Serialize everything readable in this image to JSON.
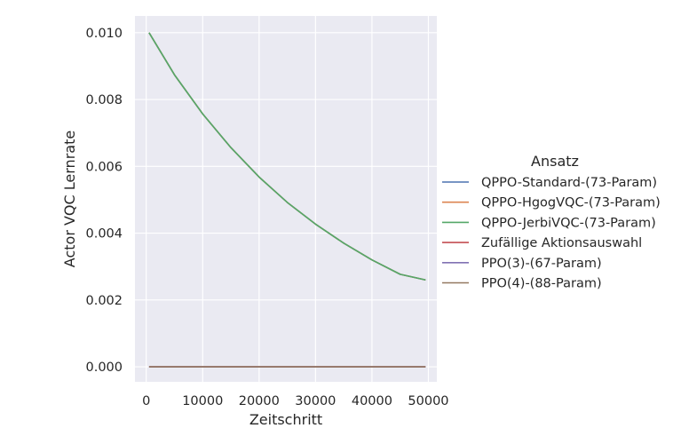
{
  "chart_data": {
    "type": "line",
    "xlabel": "Zeitschritt",
    "ylabel": "Actor VQC Lernrate",
    "xlim": [
      -2000,
      51500
    ],
    "ylim": [
      -0.00045,
      0.0105
    ],
    "x_ticks": [
      0,
      10000,
      20000,
      30000,
      40000,
      50000
    ],
    "x_tick_labels": [
      "0",
      "10000",
      "20000",
      "30000",
      "40000",
      "50000"
    ],
    "y_ticks": [
      0.0,
      0.002,
      0.004,
      0.006,
      0.008,
      0.01
    ],
    "y_tick_labels": [
      "0.000",
      "0.002",
      "0.004",
      "0.006",
      "0.008",
      "0.010"
    ],
    "grid": true,
    "legend_title": "Ansatz",
    "legend_position": "right",
    "series": [
      {
        "name": "QPPO-Standard-(73-Param)",
        "color": "#4c72b0",
        "x": [
          500,
          5000,
          10000,
          15000,
          20000,
          25000,
          30000,
          35000,
          40000,
          45000,
          49500
        ],
        "y": [
          0.01,
          0.00874,
          0.00757,
          0.00656,
          0.00568,
          0.00492,
          0.00427,
          0.0037,
          0.0032,
          0.00277,
          0.0026
        ]
      },
      {
        "name": "QPPO-HgogVQC-(73-Param)",
        "color": "#dd8452",
        "x": [
          500,
          5000,
          10000,
          15000,
          20000,
          25000,
          30000,
          35000,
          40000,
          45000,
          49500
        ],
        "y": [
          0.01,
          0.00874,
          0.00757,
          0.00656,
          0.00568,
          0.00492,
          0.00427,
          0.0037,
          0.0032,
          0.00277,
          0.0026
        ]
      },
      {
        "name": "QPPO-JerbiVQC-(73-Param)",
        "color": "#55a868",
        "x": [
          500,
          5000,
          10000,
          15000,
          20000,
          25000,
          30000,
          35000,
          40000,
          45000,
          49500
        ],
        "y": [
          0.01,
          0.00874,
          0.00757,
          0.00656,
          0.00568,
          0.00492,
          0.00427,
          0.0037,
          0.0032,
          0.00277,
          0.0026
        ]
      },
      {
        "name": "Zufällige Aktionsauswahl",
        "color": "#c44e52",
        "x": [
          500,
          49500
        ],
        "y": [
          0.0,
          0.0
        ]
      },
      {
        "name": "PPO(3)-(67-Param)",
        "color": "#8172b3",
        "x": [
          500,
          49500
        ],
        "y": [
          0.0,
          0.0
        ]
      },
      {
        "name": "PPO(4)-(88-Param)",
        "color": "#937860",
        "x": [
          500,
          49500
        ],
        "y": [
          0.0,
          0.0
        ]
      }
    ]
  }
}
